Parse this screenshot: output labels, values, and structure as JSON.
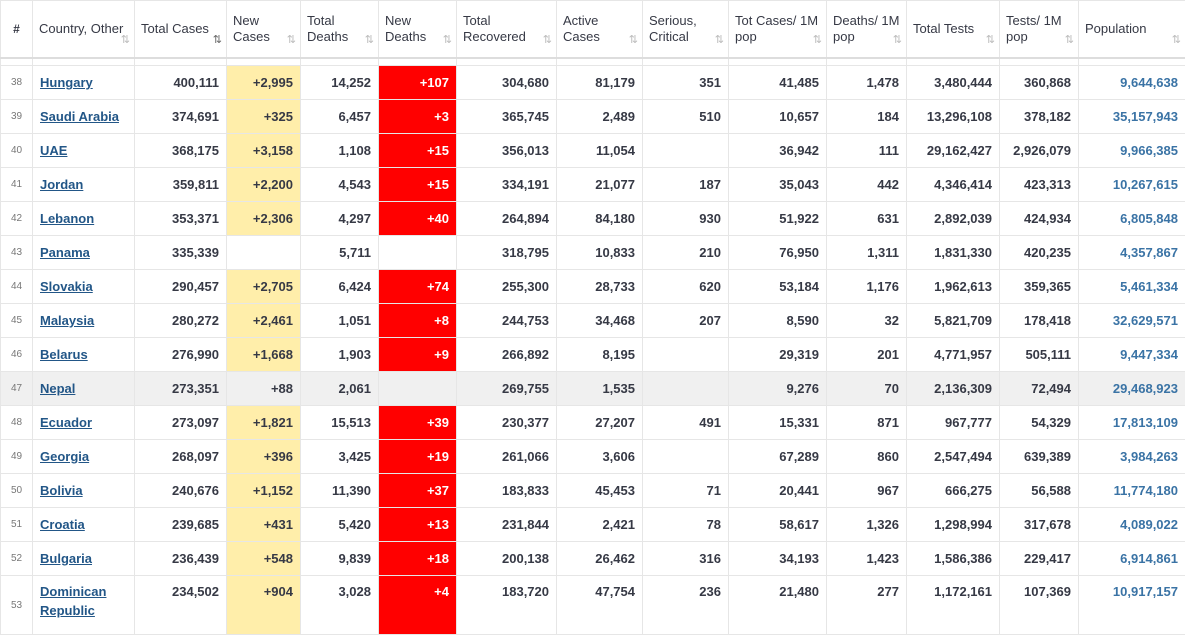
{
  "headers": [
    {
      "label": "#",
      "sort": ""
    },
    {
      "label": "Country, Other",
      "sort": "⇅"
    },
    {
      "label": "Total Cases",
      "sort": "⇅"
    },
    {
      "label": "New Cases",
      "sort": "⇅"
    },
    {
      "label": "Total Deaths",
      "sort": "⇅"
    },
    {
      "label": "New Deaths",
      "sort": "⇅"
    },
    {
      "label": "Total Recovered",
      "sort": "⇅"
    },
    {
      "label": "Active Cases",
      "sort": "⇅"
    },
    {
      "label": "Serious, Critical",
      "sort": "⇅"
    },
    {
      "label": "Tot Cases/ 1M pop",
      "sort": "⇅"
    },
    {
      "label": "Deaths/ 1M pop",
      "sort": "⇅"
    },
    {
      "label": "Total Tests",
      "sort": "⇅"
    },
    {
      "label": "Tests/ 1M pop",
      "sort": "⇅"
    },
    {
      "label": "Population",
      "sort": "⇅"
    }
  ],
  "colors": {
    "new_cases_bg": "#ffeeaa",
    "new_deaths_bg": "#ff0000",
    "link": "#225687",
    "population": "#3a73a5"
  },
  "rows": [
    [
      "38",
      "Hungary",
      "400,111",
      "+2,995",
      "14,252",
      "+107",
      "304,680",
      "81,179",
      "351",
      "41,485",
      "1,478",
      "3,480,444",
      "360,868",
      "9,644,638"
    ],
    [
      "39",
      "Saudi Arabia",
      "374,691",
      "+325",
      "6,457",
      "+3",
      "365,745",
      "2,489",
      "510",
      "10,657",
      "184",
      "13,296,108",
      "378,182",
      "35,157,943"
    ],
    [
      "40",
      "UAE",
      "368,175",
      "+3,158",
      "1,108",
      "+15",
      "356,013",
      "11,054",
      "",
      "36,942",
      "111",
      "29,162,427",
      "2,926,079",
      "9,966,385"
    ],
    [
      "41",
      "Jordan",
      "359,811",
      "+2,200",
      "4,543",
      "+15",
      "334,191",
      "21,077",
      "187",
      "35,043",
      "442",
      "4,346,414",
      "423,313",
      "10,267,615"
    ],
    [
      "42",
      "Lebanon",
      "353,371",
      "+2,306",
      "4,297",
      "+40",
      "264,894",
      "84,180",
      "930",
      "51,922",
      "631",
      "2,892,039",
      "424,934",
      "6,805,848"
    ],
    [
      "43",
      "Panama",
      "335,339",
      "",
      "5,711",
      "",
      "318,795",
      "10,833",
      "210",
      "76,950",
      "1,311",
      "1,831,330",
      "420,235",
      "4,357,867"
    ],
    [
      "44",
      "Slovakia",
      "290,457",
      "+2,705",
      "6,424",
      "+74",
      "255,300",
      "28,733",
      "620",
      "53,184",
      "1,176",
      "1,962,613",
      "359,365",
      "5,461,334"
    ],
    [
      "45",
      "Malaysia",
      "280,272",
      "+2,461",
      "1,051",
      "+8",
      "244,753",
      "34,468",
      "207",
      "8,590",
      "32",
      "5,821,709",
      "178,418",
      "32,629,571"
    ],
    [
      "46",
      "Belarus",
      "276,990",
      "+1,668",
      "1,903",
      "+9",
      "266,892",
      "8,195",
      "",
      "29,319",
      "201",
      "4,771,957",
      "505,111",
      "9,447,334"
    ],
    [
      "47",
      "Nepal",
      "273,351",
      "+88",
      "2,061",
      "",
      "269,755",
      "1,535",
      "",
      "9,276",
      "70",
      "2,136,309",
      "72,494",
      "29,468,923"
    ],
    [
      "48",
      "Ecuador",
      "273,097",
      "+1,821",
      "15,513",
      "+39",
      "230,377",
      "27,207",
      "491",
      "15,331",
      "871",
      "967,777",
      "54,329",
      "17,813,109"
    ],
    [
      "49",
      "Georgia",
      "268,097",
      "+396",
      "3,425",
      "+19",
      "261,066",
      "3,606",
      "",
      "67,289",
      "860",
      "2,547,494",
      "639,389",
      "3,984,263"
    ],
    [
      "50",
      "Bolivia",
      "240,676",
      "+1,152",
      "11,390",
      "+37",
      "183,833",
      "45,453",
      "71",
      "20,441",
      "967",
      "666,275",
      "56,588",
      "11,774,180"
    ],
    [
      "51",
      "Croatia",
      "239,685",
      "+431",
      "5,420",
      "+13",
      "231,844",
      "2,421",
      "78",
      "58,617",
      "1,326",
      "1,298,994",
      "317,678",
      "4,089,022"
    ],
    [
      "52",
      "Bulgaria",
      "236,439",
      "+548",
      "9,839",
      "+18",
      "200,138",
      "26,462",
      "316",
      "34,193",
      "1,423",
      "1,586,386",
      "229,417",
      "6,914,861"
    ],
    [
      "53",
      "Dominican Republic",
      "234,502",
      "+904",
      "3,028",
      "+4",
      "183,720",
      "47,754",
      "236",
      "21,480",
      "277",
      "1,172,161",
      "107,369",
      "10,917,157"
    ]
  ]
}
